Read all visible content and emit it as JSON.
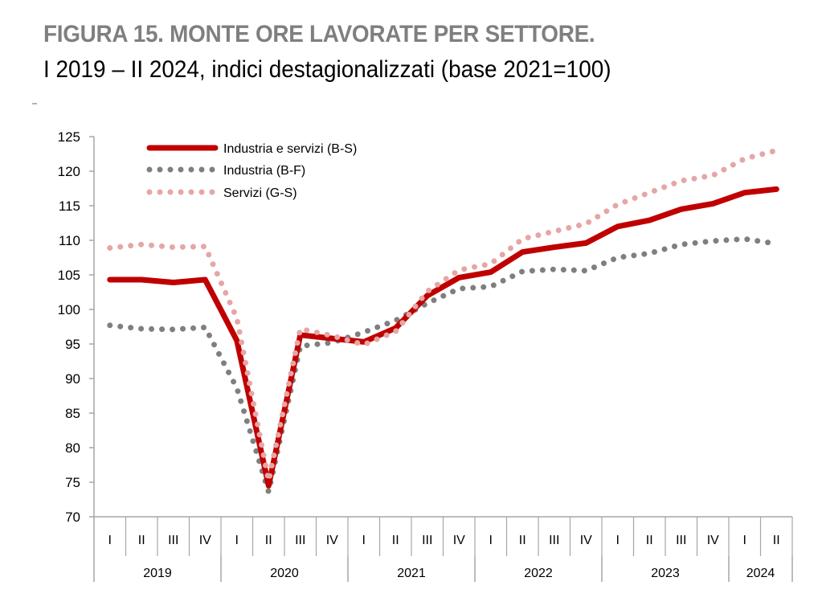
{
  "header": {
    "title": "FIGURA 15. MONTE ORE LAVORATE PER SETTORE.",
    "subtitle": "I 2019 – II 2024, indici destagionalizzati (base 2021=100)"
  },
  "chart_data": {
    "type": "line",
    "title": "FIGURA 15. MONTE ORE LAVORATE PER SETTORE.",
    "subtitle": "I 2019 – II 2024, indici destagionalizzati (base 2021=100)",
    "xlabel": "",
    "ylabel": "",
    "ylim": [
      70,
      125
    ],
    "yticks": [
      70,
      75,
      80,
      85,
      90,
      95,
      100,
      105,
      110,
      115,
      120,
      125
    ],
    "grid": false,
    "legend_position": "top-left",
    "categories": [
      "I",
      "II",
      "III",
      "IV",
      "I",
      "II",
      "III",
      "IV",
      "I",
      "II",
      "III",
      "IV",
      "I",
      "II",
      "III",
      "IV",
      "I",
      "II",
      "III",
      "IV",
      "I",
      "II"
    ],
    "years": [
      {
        "label": "2019",
        "quarters": 4
      },
      {
        "label": "2020",
        "quarters": 4
      },
      {
        "label": "2021",
        "quarters": 4
      },
      {
        "label": "2022",
        "quarters": 4
      },
      {
        "label": "2023",
        "quarters": 4
      },
      {
        "label": "2024",
        "quarters": 2
      }
    ],
    "series": [
      {
        "name": "Industria e servizi (B-S)",
        "color": "#c00000",
        "style": "solid",
        "values": [
          104.3,
          104.3,
          103.9,
          104.3,
          95.5,
          74.5,
          96.3,
          95.8,
          95.3,
          97.3,
          102.0,
          104.6,
          105.4,
          108.3,
          109.0,
          109.6,
          112.0,
          112.9,
          114.5,
          115.3,
          116.9,
          117.4
        ]
      },
      {
        "name": "Industria (B-F)",
        "color": "#7f7f7f",
        "style": "dotted",
        "values": [
          97.7,
          97.2,
          97.1,
          97.4,
          88.6,
          73.6,
          94.7,
          95.2,
          96.7,
          98.4,
          100.9,
          103.0,
          103.3,
          105.5,
          105.8,
          105.6,
          107.5,
          108.1,
          109.4,
          109.9,
          110.2,
          109.5
        ]
      },
      {
        "name": "Servizi (G-S)",
        "color": "#e6a6a6",
        "style": "dotted",
        "values": [
          108.9,
          109.4,
          109.0,
          109.1,
          98.7,
          75.2,
          97.2,
          96.2,
          94.9,
          96.8,
          102.6,
          105.7,
          106.6,
          110.2,
          111.3,
          112.4,
          115.2,
          116.9,
          118.6,
          119.4,
          121.8,
          123.0
        ]
      }
    ]
  }
}
